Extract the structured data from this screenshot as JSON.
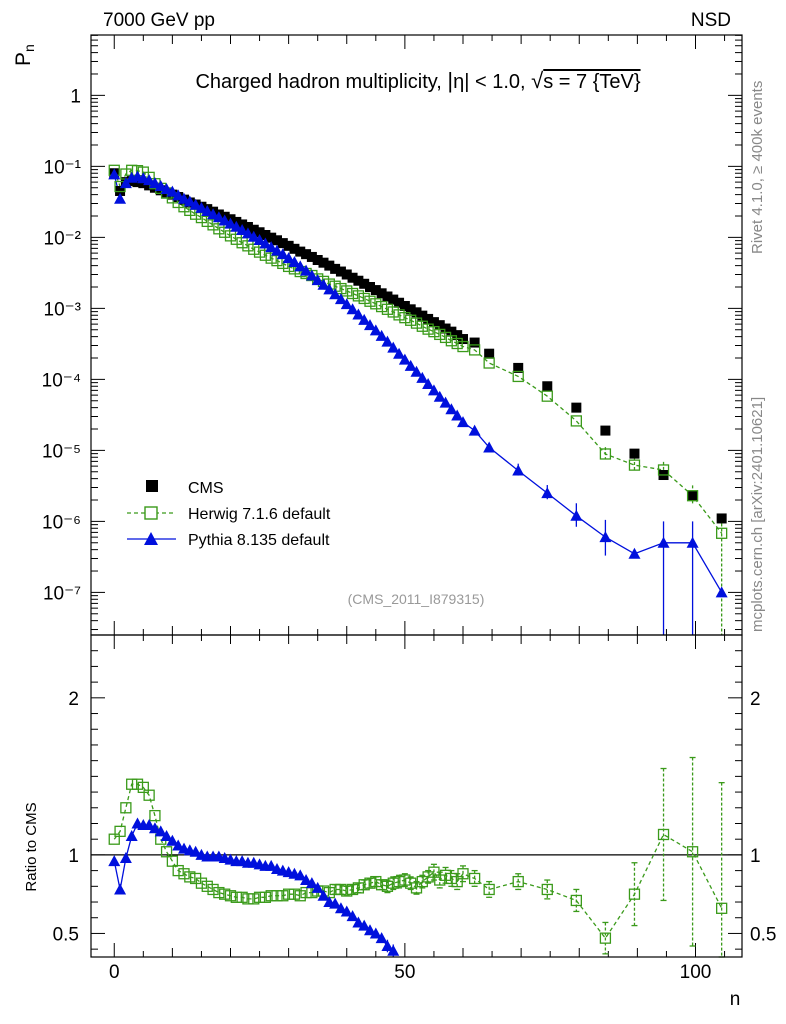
{
  "header": {
    "left": "7000 GeV pp",
    "right": "NSD"
  },
  "side_labels": {
    "rivet": "Rivet 4.1.0, ≥ 400k events",
    "mcplots": "mcplots.cern.ch [arXiv:2401.10621]"
  },
  "chart_data": {
    "type": "scatter",
    "title": "Charged hadron multiplicity, |η| < 1.0, √s = 7 {TeV}",
    "title_pre": "Charged hadron multiplicity, ",
    "title_eta": "η| < 1.0, ",
    "title_sqrt": "√",
    "title_post": "s = 7 {TeV}",
    "analysis_id": "(CMS_2011_I879315)",
    "xlabel": "n",
    "ylabel_main": "P",
    "ylabel_main_sub": "n",
    "ylabel_ratio": "Ratio to CMS",
    "xlim": [
      -4,
      108
    ],
    "ylim_main_log10": [
      -7.6,
      0.85
    ],
    "ylim_ratio": [
      0.35,
      2.4
    ],
    "x_ticks": [
      "0",
      "50",
      "100"
    ],
    "y_ticks_main": [
      "10⁻⁷",
      "10⁻⁶",
      "10⁻⁵",
      "10⁻⁴",
      "10⁻³",
      "10⁻²",
      "10⁻¹",
      "1"
    ],
    "y_ticks_ratio": [
      "0.5",
      "1",
      "2"
    ],
    "legend": [
      "CMS",
      "Herwig 7.1.6 default",
      "Pythia 8.135 default"
    ],
    "colors": {
      "cms": "#000000",
      "herwig": "#3a9a1a",
      "pythia": "#0010dd"
    },
    "series": [
      {
        "name": "CMS",
        "x": [
          0,
          1,
          2,
          3,
          4,
          5,
          6,
          7,
          8,
          9,
          10,
          11,
          12,
          13,
          14,
          15,
          16,
          17,
          18,
          19,
          20,
          21,
          22,
          23,
          24,
          25,
          26,
          27,
          28,
          29,
          30,
          31,
          32,
          33,
          34,
          35,
          36,
          37,
          38,
          39,
          40,
          41,
          42,
          43,
          44,
          45,
          46,
          47,
          48,
          49,
          50,
          51,
          52,
          53,
          54,
          55,
          56,
          57,
          58,
          59,
          60,
          62,
          64.5,
          69.5,
          74.5,
          79.5,
          84.5,
          89.5,
          94.5,
          99.5,
          104.5
        ],
        "y": [
          0.08,
          0.045,
          0.06,
          0.062,
          0.06,
          0.058,
          0.054,
          0.05,
          0.046,
          0.043,
          0.04,
          0.037,
          0.034,
          0.031,
          0.029,
          0.027,
          0.025,
          0.023,
          0.021,
          0.0195,
          0.018,
          0.0165,
          0.0152,
          0.014,
          0.0128,
          0.0118,
          0.0108,
          0.0099,
          0.0091,
          0.0083,
          0.0076,
          0.0069,
          0.0063,
          0.0058,
          0.0053,
          0.0048,
          0.0044,
          0.004,
          0.0036,
          0.0033,
          0.003,
          0.0027,
          0.00245,
          0.00222,
          0.002,
          0.00181,
          0.00163,
          0.00147,
          0.00133,
          0.0012,
          0.00108,
          0.00097,
          0.00088,
          0.00079,
          0.00071,
          0.00064,
          0.00058,
          0.00052,
          0.00047,
          0.00042,
          0.00037,
          0.00033,
          0.00023,
          0.000145,
          8e-05,
          4e-05,
          1.9e-05,
          9e-06,
          4.5e-06,
          2.3e-06,
          1.1e-06
        ]
      },
      {
        "name": "Herwig 7.1.6 default",
        "x": [
          0,
          1,
          2,
          3,
          4,
          5,
          6,
          7,
          8,
          9,
          10,
          11,
          12,
          13,
          14,
          15,
          16,
          17,
          18,
          19,
          20,
          21,
          22,
          23,
          24,
          25,
          26,
          27,
          28,
          29,
          30,
          31,
          32,
          33,
          34,
          35,
          36,
          37,
          38,
          39,
          40,
          41,
          42,
          43,
          44,
          45,
          46,
          47,
          48,
          49,
          50,
          51,
          52,
          53,
          54,
          55,
          56,
          57,
          58,
          59,
          60,
          62,
          64.5,
          69.5,
          74.5,
          79.5,
          84.5,
          89.5,
          94.5,
          99.5,
          104.5
        ],
        "y": [
          0.088,
          0.052,
          0.078,
          0.088,
          0.087,
          0.083,
          0.07,
          0.057,
          0.049,
          0.042,
          0.036,
          0.031,
          0.027,
          0.024,
          0.0212,
          0.019,
          0.0168,
          0.015,
          0.0132,
          0.0118,
          0.0105,
          0.0094,
          0.0084,
          0.0076,
          0.0068,
          0.0062,
          0.0056,
          0.0051,
          0.0047,
          0.0043,
          0.0039,
          0.0036,
          0.0033,
          0.0031,
          0.0029,
          0.0026,
          0.0024,
          0.0022,
          0.00205,
          0.0019,
          0.00176,
          0.00162,
          0.0015,
          0.00138,
          0.00126,
          0.00116,
          0.00106,
          0.00097,
          0.00089,
          0.00081,
          0.00074,
          0.00068,
          0.00062,
          0.00056,
          0.00051,
          0.00047,
          0.00043,
          0.00039,
          0.00035,
          0.00032,
          0.00029,
          0.00026,
          0.00017,
          0.00011,
          5.8e-05,
          2.6e-05,
          8.9e-06,
          6.2e-06,
          5.3e-06,
          2.3e-06,
          6.8e-07
        ]
      },
      {
        "name": "Pythia 8.135 default",
        "x": [
          0,
          1,
          2,
          3,
          4,
          5,
          6,
          7,
          8,
          9,
          10,
          11,
          12,
          13,
          14,
          15,
          16,
          17,
          18,
          19,
          20,
          21,
          22,
          23,
          24,
          25,
          26,
          27,
          28,
          29,
          30,
          31,
          32,
          33,
          34,
          35,
          36,
          37,
          38,
          39,
          40,
          41,
          42,
          43,
          44,
          45,
          46,
          47,
          48,
          49,
          50,
          51,
          52,
          53,
          54,
          55,
          56,
          57,
          58,
          59,
          60,
          62,
          64.5,
          69.5,
          74.5,
          79.5,
          84.5,
          89.5,
          94.5,
          99.5,
          104.5
        ],
        "y": [
          0.077,
          0.035,
          0.058,
          0.069,
          0.072,
          0.068,
          0.064,
          0.058,
          0.053,
          0.048,
          0.044,
          0.039,
          0.035,
          0.032,
          0.0288,
          0.026,
          0.0235,
          0.0212,
          0.0192,
          0.0173,
          0.0156,
          0.0141,
          0.0127,
          0.0114,
          0.0102,
          0.0092,
          0.0082,
          0.0073,
          0.0065,
          0.0058,
          0.0051,
          0.0045,
          0.0039,
          0.0034,
          0.0029,
          0.0025,
          0.00215,
          0.00185,
          0.00158,
          0.00135,
          0.00115,
          0.00097,
          0.00082,
          0.00069,
          0.00058,
          0.00049,
          0.00041,
          0.00034,
          0.00028,
          0.00023,
          0.00019,
          0.000155,
          0.000128,
          0.000105,
          8.6e-05,
          7e-05,
          5.7e-05,
          4.7e-05,
          3.8e-05,
          3.1e-05,
          2.5e-05,
          1.9e-05,
          1.1e-05,
          5.2e-06,
          2.5e-06,
          1.2e-06,
          6e-07,
          3.5e-07,
          5e-07,
          5e-07,
          1e-07
        ]
      }
    ],
    "ratio_series": [
      {
        "name": "Herwig 7.1.6 default",
        "x": [
          0,
          1,
          2,
          3,
          4,
          5,
          6,
          7,
          8,
          9,
          10,
          11,
          12,
          13,
          14,
          15,
          16,
          17,
          18,
          19,
          20,
          21,
          22,
          23,
          24,
          25,
          26,
          27,
          28,
          29,
          30,
          31,
          32,
          33,
          34,
          35,
          36,
          37,
          38,
          39,
          40,
          41,
          42,
          43,
          44,
          45,
          46,
          47,
          48,
          49,
          50,
          51,
          52,
          53,
          54,
          55,
          56,
          57,
          58,
          59,
          60,
          62,
          64.5,
          69.5,
          74.5,
          79.5,
          84.5,
          89.5,
          94.5,
          99.5,
          104.5
        ],
        "y": [
          1.1,
          1.15,
          1.3,
          1.45,
          1.45,
          1.43,
          1.38,
          1.25,
          1.1,
          1.02,
          0.96,
          0.9,
          0.88,
          0.86,
          0.85,
          0.82,
          0.8,
          0.78,
          0.76,
          0.75,
          0.74,
          0.73,
          0.73,
          0.72,
          0.72,
          0.73,
          0.73,
          0.74,
          0.74,
          0.74,
          0.75,
          0.75,
          0.74,
          0.76,
          0.76,
          0.77,
          0.77,
          0.76,
          0.78,
          0.78,
          0.77,
          0.78,
          0.79,
          0.81,
          0.82,
          0.83,
          0.81,
          0.8,
          0.82,
          0.83,
          0.84,
          0.82,
          0.79,
          0.83,
          0.86,
          0.89,
          0.84,
          0.87,
          0.85,
          0.83,
          0.88,
          0.85,
          0.78,
          0.83,
          0.78,
          0.71,
          0.47,
          0.75,
          1.13,
          1.02,
          0.66
        ],
        "err": [
          0.02,
          0.02,
          0.02,
          0.02,
          0.02,
          0.02,
          0.02,
          0.02,
          0.02,
          0.02,
          0.02,
          0.02,
          0.02,
          0.02,
          0.02,
          0.02,
          0.02,
          0.02,
          0.02,
          0.02,
          0.02,
          0.02,
          0.02,
          0.02,
          0.02,
          0.02,
          0.02,
          0.02,
          0.02,
          0.02,
          0.02,
          0.02,
          0.02,
          0.02,
          0.02,
          0.02,
          0.02,
          0.02,
          0.03,
          0.03,
          0.03,
          0.03,
          0.03,
          0.03,
          0.03,
          0.03,
          0.03,
          0.04,
          0.04,
          0.04,
          0.04,
          0.04,
          0.04,
          0.04,
          0.04,
          0.05,
          0.05,
          0.05,
          0.05,
          0.05,
          0.05,
          0.05,
          0.05,
          0.05,
          0.06,
          0.07,
          0.1,
          0.2,
          0.42,
          0.6,
          0.8
        ]
      },
      {
        "name": "Pythia 8.135 default",
        "x": [
          0,
          1,
          2,
          3,
          4,
          5,
          6,
          7,
          8,
          9,
          10,
          11,
          12,
          13,
          14,
          15,
          16,
          17,
          18,
          19,
          20,
          21,
          22,
          23,
          24,
          25,
          26,
          27,
          28,
          29,
          30,
          31,
          32,
          33,
          34,
          35,
          36,
          37,
          38,
          39,
          40,
          41,
          42,
          43,
          44,
          45,
          46,
          47,
          48
        ],
        "y": [
          0.96,
          0.78,
          0.98,
          1.12,
          1.2,
          1.19,
          1.19,
          1.17,
          1.15,
          1.12,
          1.09,
          1.06,
          1.04,
          1.03,
          1.02,
          1.0,
          0.99,
          0.99,
          0.99,
          0.98,
          0.97,
          0.96,
          0.96,
          0.95,
          0.95,
          0.94,
          0.93,
          0.93,
          0.91,
          0.9,
          0.89,
          0.88,
          0.87,
          0.84,
          0.82,
          0.79,
          0.74,
          0.7,
          0.69,
          0.66,
          0.64,
          0.61,
          0.57,
          0.55,
          0.52,
          0.5,
          0.47,
          0.42,
          0.39
        ],
        "err": [
          0.02,
          0.02,
          0.02,
          0.02,
          0.02,
          0.02,
          0.02,
          0.02,
          0.02,
          0.02,
          0.02,
          0.02,
          0.02,
          0.02,
          0.02,
          0.02,
          0.02,
          0.02,
          0.02,
          0.02,
          0.02,
          0.02,
          0.02,
          0.02,
          0.02,
          0.02,
          0.02,
          0.02,
          0.02,
          0.02,
          0.02,
          0.02,
          0.02,
          0.02,
          0.02,
          0.02,
          0.02,
          0.02,
          0.02,
          0.02,
          0.02,
          0.02,
          0.02,
          0.02,
          0.03,
          0.03,
          0.03,
          0.04,
          0.04
        ]
      }
    ]
  }
}
